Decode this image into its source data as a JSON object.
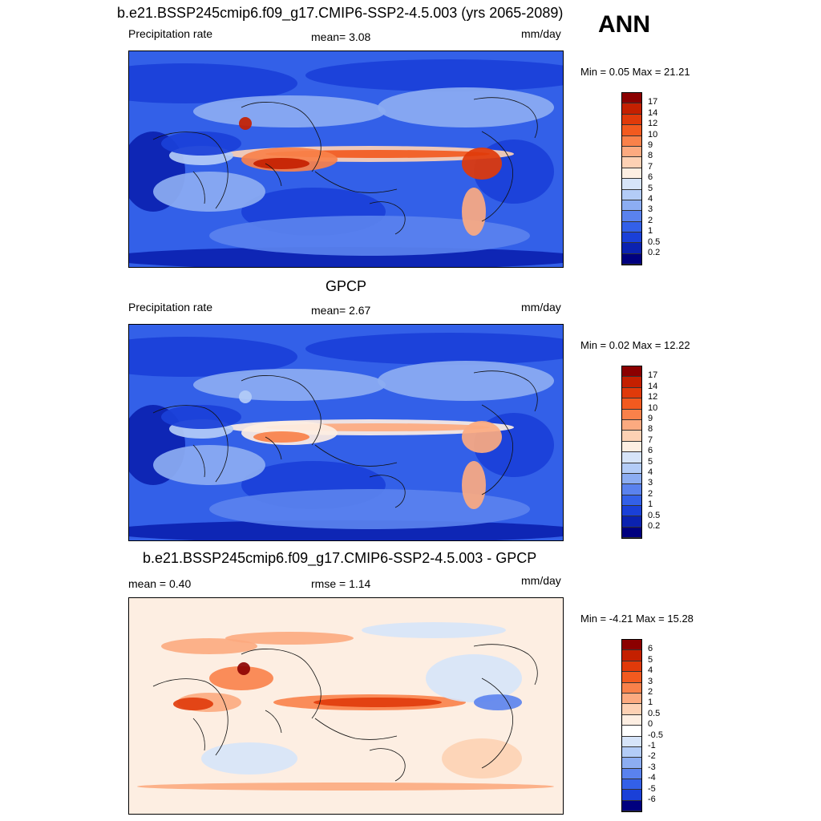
{
  "header": {
    "title": "b.e21.BSSP245cmip6.f09_g17.CMIP6-SSP2-4.5.003 (yrs 2065-2089)",
    "season": "ANN"
  },
  "panels": [
    {
      "title": "",
      "left_label": "Precipitation rate",
      "center_label": "mean=   3.08",
      "units": "mm/day",
      "minmax": "Min =   0.05 Max =  21.21",
      "colorbar_levels": [
        "17",
        "14",
        "12",
        "10",
        "9",
        "8",
        "7",
        "6",
        "5",
        "4",
        "3",
        "2",
        "1",
        "0.5",
        "0.2"
      ],
      "colorbar_colors": [
        "#8b0000",
        "#c42000",
        "#e03a0a",
        "#f25a1f",
        "#f9814a",
        "#fcaa80",
        "#fdd1b4",
        "#fdeee2",
        "#d6e4f9",
        "#b3ccf7",
        "#8cadf2",
        "#5a82ee",
        "#3360e8",
        "#1a40d8",
        "#0b22b0",
        "#00007f"
      ],
      "map_kind": "precip"
    },
    {
      "title": "GPCP",
      "left_label": "Precipitation rate",
      "center_label": "mean=   2.67",
      "units": "mm/day",
      "minmax": "Min =   0.02 Max =  12.22",
      "colorbar_levels": [
        "17",
        "14",
        "12",
        "10",
        "9",
        "8",
        "7",
        "6",
        "5",
        "4",
        "3",
        "2",
        "1",
        "0.5",
        "0.2"
      ],
      "colorbar_colors": [
        "#8b0000",
        "#c42000",
        "#e03a0a",
        "#f25a1f",
        "#f9814a",
        "#fcaa80",
        "#fdd1b4",
        "#fdeee2",
        "#d6e4f9",
        "#b3ccf7",
        "#8cadf2",
        "#5a82ee",
        "#3360e8",
        "#1a40d8",
        "#0b22b0",
        "#00007f"
      ],
      "map_kind": "precip_obs"
    },
    {
      "title": "b.e21.BSSP245cmip6.f09_g17.CMIP6-SSP2-4.5.003 - GPCP",
      "left_label": "mean =   0.40",
      "center_label": "rmse =   1.14",
      "units": "mm/day",
      "minmax": "Min =  -4.21 Max =  15.28",
      "colorbar_levels": [
        "6",
        "5",
        "4",
        "3",
        "2",
        "1",
        "0.5",
        "0",
        "-0.5",
        "-1",
        "-2",
        "-3",
        "-4",
        "-5",
        "-6"
      ],
      "colorbar_colors": [
        "#8b0000",
        "#c42000",
        "#e03a0a",
        "#f25a1f",
        "#f9814a",
        "#fcaa80",
        "#fdd1b4",
        "#fdeee2",
        "#ffffff",
        "#d6e4f9",
        "#b3ccf7",
        "#8cadf2",
        "#5a82ee",
        "#3360e8",
        "#1a40d8",
        "#00007f"
      ],
      "map_kind": "diff"
    }
  ]
}
